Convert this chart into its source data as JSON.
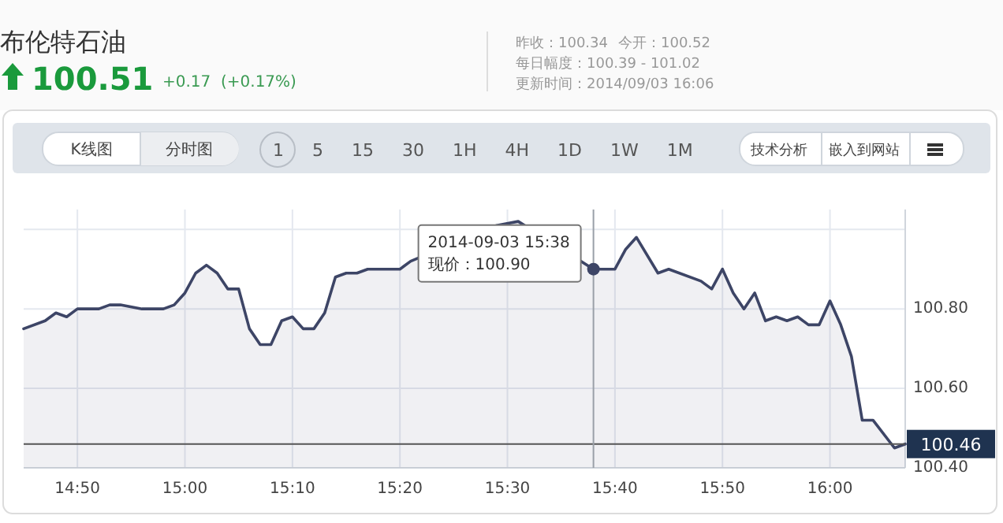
{
  "chart_data": {
    "type": "area",
    "title": "布伦特石油",
    "subtitle": "100.51",
    "x": [
      "2014-09-03T14:45",
      "2014-09-03T14:47",
      "2014-09-03T14:48",
      "2014-09-03T14:49",
      "2014-09-03T14:50",
      "2014-09-03T14:52",
      "2014-09-03T14:53",
      "2014-09-03T14:54",
      "2014-09-03T14:56",
      "2014-09-03T14:58",
      "2014-09-03T14:59",
      "2014-09-03T15:00",
      "2014-09-03T15:01",
      "2014-09-03T15:02",
      "2014-09-03T15:03",
      "2014-09-03T15:04",
      "2014-09-03T15:05",
      "2014-09-03T15:06",
      "2014-09-03T15:07",
      "2014-09-03T15:08",
      "2014-09-03T15:09",
      "2014-09-03T15:10",
      "2014-09-03T15:11",
      "2014-09-03T15:12",
      "2014-09-03T15:13",
      "2014-09-03T15:14",
      "2014-09-03T15:15",
      "2014-09-03T15:16",
      "2014-09-03T15:17",
      "2014-09-03T15:20",
      "2014-09-03T15:21",
      "2014-09-03T15:29",
      "2014-09-03T15:31",
      "2014-09-03T15:38",
      "2014-09-03T15:40",
      "2014-09-03T15:41",
      "2014-09-03T15:42",
      "2014-09-03T15:44",
      "2014-09-03T15:45",
      "2014-09-03T15:48",
      "2014-09-03T15:49",
      "2014-09-03T15:50",
      "2014-09-03T15:51",
      "2014-09-03T15:52",
      "2014-09-03T15:53",
      "2014-09-03T15:54",
      "2014-09-03T15:55",
      "2014-09-03T15:56",
      "2014-09-03T15:57",
      "2014-09-03T15:58",
      "2014-09-03T15:59",
      "2014-09-03T16:00",
      "2014-09-03T16:01",
      "2014-09-03T16:02",
      "2014-09-03T16:03",
      "2014-09-03T16:04",
      "2014-09-03T16:06",
      "2014-09-03T16:07"
    ],
    "series": [
      {
        "color": "#3d4566",
        "values": [
          100.75,
          100.77,
          100.79,
          100.78,
          100.8,
          100.8,
          100.81,
          100.81,
          100.8,
          100.8,
          100.81,
          100.84,
          100.89,
          100.91,
          100.89,
          100.85,
          100.85,
          100.75,
          100.71,
          100.71,
          100.77,
          100.78,
          100.75,
          100.75,
          100.79,
          100.88,
          100.89,
          100.89,
          100.9,
          100.9,
          100.92,
          101.01,
          101.02,
          100.9,
          100.9,
          100.95,
          100.98,
          100.89,
          100.9,
          100.87,
          100.85,
          100.9,
          100.84,
          100.8,
          100.84,
          100.77,
          100.78,
          100.77,
          100.78,
          100.76,
          100.76,
          100.82,
          100.76,
          100.68,
          100.52,
          100.52,
          100.45,
          100.46
        ]
      }
    ],
    "xlim": [
      "2014-09-03T14:45",
      "2014-09-03T16:07"
    ],
    "xticks": [
      {
        "value": "2014-09-03T14:50",
        "label": "14:50"
      },
      {
        "value": "2014-09-03T15:00",
        "label": "15:00"
      },
      {
        "value": "2014-09-03T15:10",
        "label": "15:10"
      },
      {
        "value": "2014-09-03T15:20",
        "label": "15:20"
      },
      {
        "value": "2014-09-03T15:30",
        "label": "15:30"
      },
      {
        "value": "2014-09-03T15:40",
        "label": "15:40"
      },
      {
        "value": "2014-09-03T15:50",
        "label": "15:50"
      },
      {
        "value": "2014-09-03T16:00",
        "label": "16:00"
      }
    ],
    "ylim": [
      100.4,
      101.05
    ],
    "yticks": [
      {
        "value": 100.4,
        "label": "100.40"
      },
      {
        "value": 100.6,
        "label": "100.60"
      },
      {
        "value": 100.8,
        "label": "100.80"
      },
      {
        "value": 101.0,
        "label": null
      }
    ],
    "grid": true,
    "marker": "none",
    "line_style": "solid",
    "ref_lines": [
      {
        "axis": "y",
        "value": 100.46,
        "label": "100.46"
      },
      {
        "axis": "x",
        "value": "2014-09-03T15:38"
      }
    ],
    "annotations": [
      "+0.17",
      "(+0.17%)",
      "昨收：100.34",
      "今开：100.52",
      "每日幅度：100.39 - 101.02",
      "更新时间：2014/09/03 16:06",
      "K线图",
      "分时图",
      "1 5 15 30 1H 4H 1D 1W 1M",
      "技术分析",
      "嵌入到网站",
      {
        "text": "2014-09-03 15:38",
        "x": "2014-09-03T15:38",
        "y": 100.9
      },
      "现价：100.90"
    ]
  }
}
